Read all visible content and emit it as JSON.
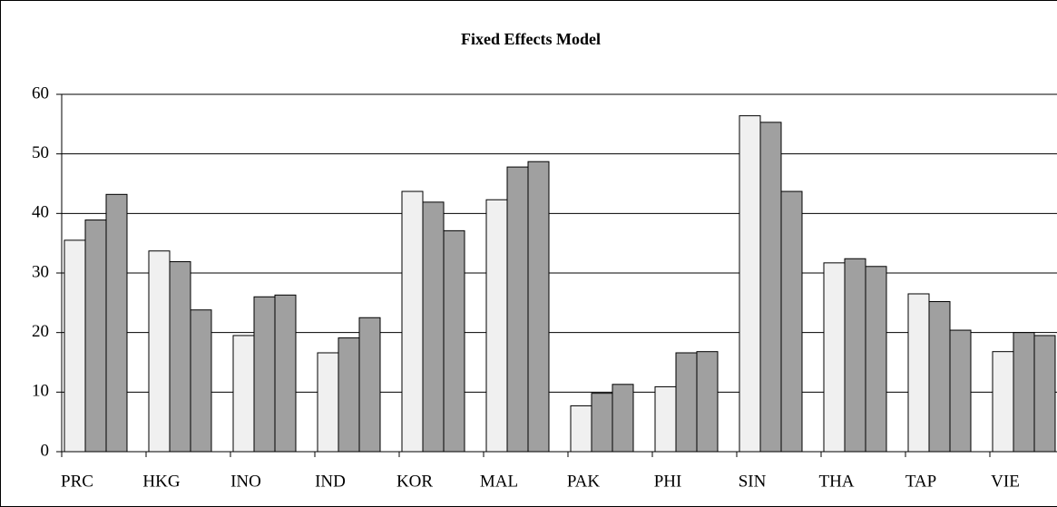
{
  "chart_data": {
    "type": "bar",
    "title": "Fixed Effects Model",
    "categories": [
      "PRC",
      "HKG",
      "INO",
      "IND",
      "KOR",
      "MAL",
      "PAK",
      "PHI",
      "SIN",
      "THA",
      "TAP",
      "VIE"
    ],
    "series": [
      {
        "color": "#f0f0f0",
        "values": [
          35.5,
          33.7,
          19.5,
          16.6,
          43.7,
          42.3,
          7.7,
          10.9,
          56.4,
          31.7,
          26.5,
          16.8
        ]
      },
      {
        "color": "#a0a0a0",
        "values": [
          38.9,
          31.9,
          26.0,
          19.1,
          41.9,
          47.8,
          9.8,
          16.6,
          55.3,
          32.4,
          25.2,
          20.0
        ]
      },
      {
        "color": "#a0a0a0",
        "values": [
          43.2,
          23.8,
          26.3,
          22.5,
          37.1,
          48.7,
          11.3,
          16.8,
          43.7,
          31.1,
          20.4,
          19.5
        ]
      }
    ],
    "ylim": [
      0,
      60
    ],
    "yticks": [
      0,
      10,
      20,
      30,
      40,
      50,
      60
    ],
    "grid": true
  }
}
